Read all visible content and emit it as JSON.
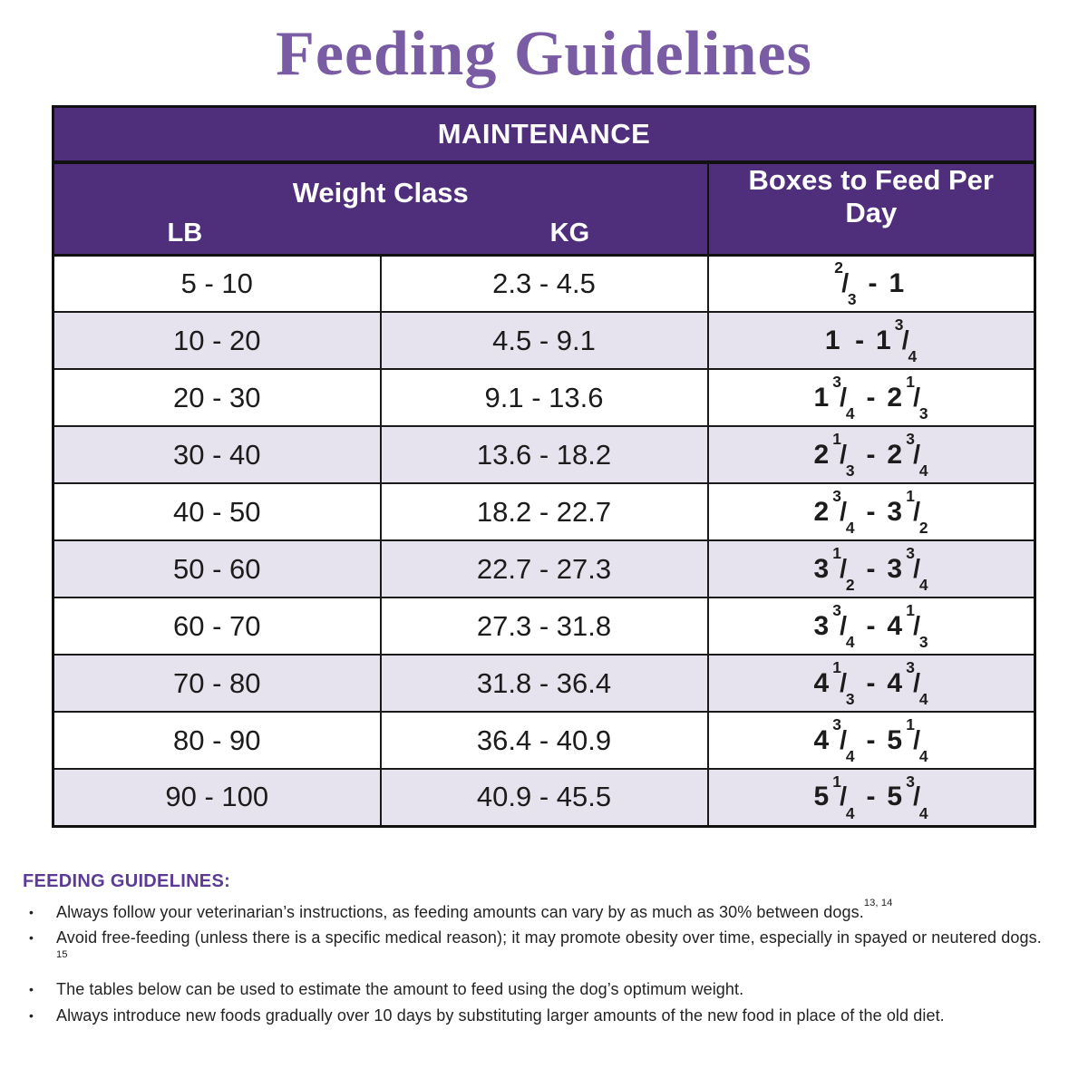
{
  "colors": {
    "page_bg": "#ffffff",
    "title": "#7a5ca4",
    "header_purple": "#4f2e7c",
    "stripe": "#e7e3ee",
    "footer_accent": "#5c3b97",
    "border": "#111111"
  },
  "title": {
    "text": "Feeding Guidelines"
  },
  "table": {
    "header": "MAINTENANCE",
    "weight_class": {
      "label": "Weight Class",
      "lb": "LB",
      "kg": "KG"
    },
    "boxes_header": "Boxes to Feed Per Day",
    "rows": [
      {
        "lb": "5 - 10",
        "kg": "2.3 - 4.5",
        "boxes": {
          "low": {
            "whole": "",
            "num": "2",
            "den": "3"
          },
          "high": {
            "whole": "1",
            "num": "",
            "den": ""
          }
        }
      },
      {
        "lb": "10 - 20",
        "kg": "4.5 - 9.1",
        "boxes": {
          "low": {
            "whole": "1",
            "num": "",
            "den": ""
          },
          "high": {
            "whole": "1",
            "num": "3",
            "den": "4"
          }
        }
      },
      {
        "lb": "20 - 30",
        "kg": "9.1 - 13.6",
        "boxes": {
          "low": {
            "whole": "1",
            "num": "3",
            "den": "4"
          },
          "high": {
            "whole": "2",
            "num": "1",
            "den": "3"
          }
        }
      },
      {
        "lb": "30 - 40",
        "kg": "13.6 - 18.2",
        "boxes": {
          "low": {
            "whole": "2",
            "num": "1",
            "den": "3"
          },
          "high": {
            "whole": "2",
            "num": "3",
            "den": "4"
          }
        }
      },
      {
        "lb": "40 - 50",
        "kg": "18.2 - 22.7",
        "boxes": {
          "low": {
            "whole": "2",
            "num": "3",
            "den": "4"
          },
          "high": {
            "whole": "3",
            "num": "1",
            "den": "2"
          }
        }
      },
      {
        "lb": "50 - 60",
        "kg": "22.7 - 27.3",
        "boxes": {
          "low": {
            "whole": "3",
            "num": "1",
            "den": "2"
          },
          "high": {
            "whole": "3",
            "num": "3",
            "den": "4"
          }
        }
      },
      {
        "lb": "60 - 70",
        "kg": "27.3 - 31.8",
        "boxes": {
          "low": {
            "whole": "3",
            "num": "3",
            "den": "4"
          },
          "high": {
            "whole": "4",
            "num": "1",
            "den": "3"
          }
        }
      },
      {
        "lb": "70 - 80",
        "kg": "31.8 - 36.4",
        "boxes": {
          "low": {
            "whole": "4",
            "num": "1",
            "den": "3"
          },
          "high": {
            "whole": "4",
            "num": "3",
            "den": "4"
          }
        }
      },
      {
        "lb": "80 - 90",
        "kg": "36.4 - 40.9",
        "boxes": {
          "low": {
            "whole": "4",
            "num": "3",
            "den": "4"
          },
          "high": {
            "whole": "5",
            "num": "1",
            "den": "4"
          }
        }
      },
      {
        "lb": "90 - 100",
        "kg": "40.9 - 45.5",
        "boxes": {
          "low": {
            "whole": "5",
            "num": "1",
            "den": "4"
          },
          "high": {
            "whole": "5",
            "num": "3",
            "den": "4"
          }
        }
      }
    ]
  },
  "footer": {
    "heading": "FEEDING GUIDELINES:",
    "bullets": [
      {
        "text": "Always follow your veterinarian’s instructions, as feeding amounts can vary by as much as 30% between dogs.",
        "superscript": "13, 14"
      },
      {
        "text": "Avoid free-feeding (unless there is a specific medical reason); it may promote obesity over time, especially in spayed or neutered dogs. ",
        "superscript": "15"
      },
      {
        "text": "The tables below can be used to estimate the amount to feed using the dog’s optimum weight.",
        "superscript": ""
      },
      {
        "text": "Always introduce new foods gradually over 10 days by substituting larger amounts of the new food in place of the old diet.",
        "superscript": ""
      }
    ]
  }
}
